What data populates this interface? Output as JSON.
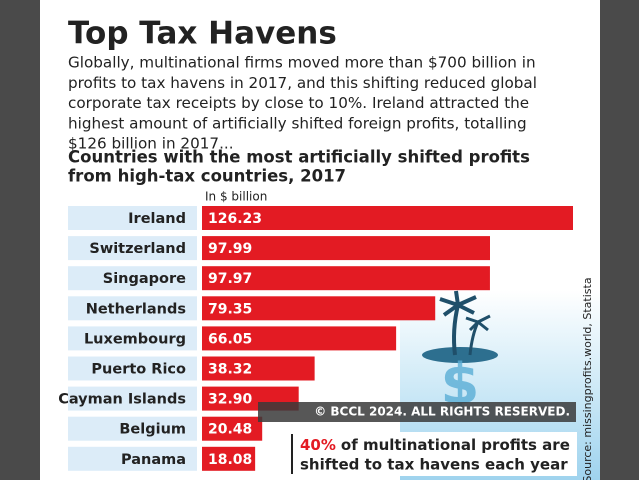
{
  "chart_data": {
    "type": "bar",
    "title": "Top Tax Havens",
    "intro_lines": [
      "Globally, multinational firms moved more than $700 billion in",
      "profits to tax havens in 2017, and this shifting reduced global",
      "corporate tax receipts by close to 10%. Ireland attracted the",
      "highest amount of artificially shifted foreign profits, totalling",
      "$126 billion in 2017..."
    ],
    "subtitle_lines": [
      "Countries with the most artificially shifted profits",
      "from high-tax countries, 2017"
    ],
    "unit_label": "In $ billion",
    "categories": [
      "Ireland",
      "Switzerland",
      "Singapore",
      "Netherlands",
      "Luxembourg",
      "Puerto Rico",
      "Cayman Islands",
      "Belgium",
      "Panama"
    ],
    "values": [
      126.23,
      97.99,
      97.97,
      79.35,
      66.05,
      38.32,
      32.9,
      20.48,
      18.08
    ],
    "value_labels": [
      "126.23",
      "97.99",
      "97.97",
      "79.35",
      "66.05",
      "38.32",
      "32.90",
      "20.48",
      "18.08"
    ],
    "color": "#e31b23",
    "callout": {
      "highlight": "40%",
      "lines": [
        "of multinational profits are",
        "shifted to tax havens each year"
      ]
    },
    "source": "Source: missingprofits.world, Statista",
    "watermark": "© BCCL 2024. ALL RIGHTS RESERVED."
  }
}
